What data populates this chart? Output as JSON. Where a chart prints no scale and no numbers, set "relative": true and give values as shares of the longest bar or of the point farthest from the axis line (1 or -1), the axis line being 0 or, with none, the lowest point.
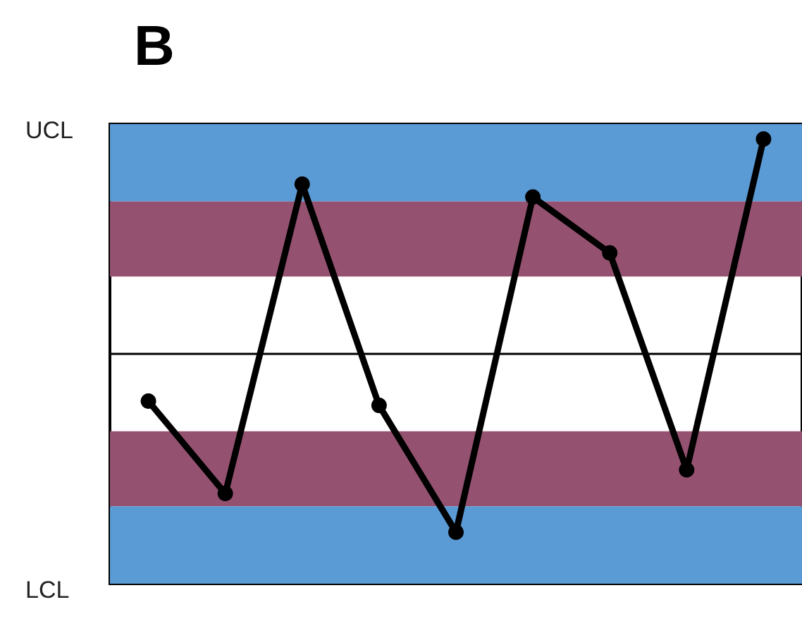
{
  "chart_data": {
    "type": "line",
    "title": "B",
    "relative": true,
    "categories": [
      null,
      null,
      null,
      null,
      null,
      null,
      null,
      null,
      null
    ],
    "values": [
      -0.22,
      -0.65,
      0.79,
      -0.24,
      -0.83,
      0.73,
      0.47,
      -0.54,
      1
    ],
    "color": "#000000",
    "marker": "circle",
    "line_style": "solid",
    "annotations": [
      "UCL",
      "LCL"
    ],
    "bands": [
      {
        "axis": "y",
        "from": 0.71,
        "to": 1.07,
        "color": "#5b9bd5"
      },
      {
        "axis": "y",
        "from": 0.36,
        "to": 0.71,
        "color": "#955270"
      },
      {
        "axis": "y",
        "from": -0.71,
        "to": -0.36,
        "color": "#955270"
      },
      {
        "axis": "y",
        "from": -1.07,
        "to": -0.71,
        "color": "#5b9bd5"
      }
    ],
    "ref_lines": [
      {
        "axis": "y",
        "value": 0,
        "color": "#000000",
        "line_style": "solid"
      }
    ]
  }
}
